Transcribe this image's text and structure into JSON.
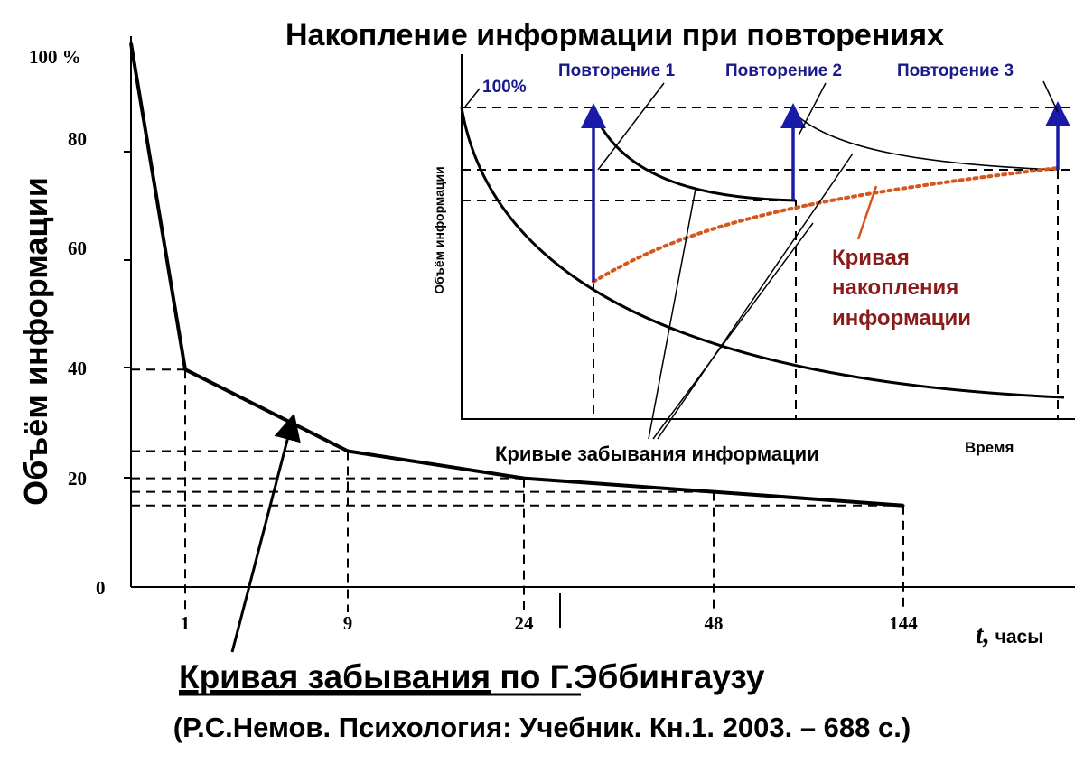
{
  "chart_data": [
    {
      "type": "line",
      "title": "Кривая забывания по Г.Эббингаузу",
      "title_underlined_part": "Кривая забывания",
      "title_rest": " по Г.Эббингаузу",
      "subtitle": "(Р.С.Немов. Психология: Учебник. Кн.1. 2003. – 688 с.)",
      "ylabel": "Объём информации",
      "xlabel_symbol": "t,",
      "xlabel_unit": " часы",
      "x_ticks": [
        "1",
        "9",
        "24",
        "48",
        "144"
      ],
      "y_ticks": [
        {
          "label": "100 %",
          "value": 100
        },
        {
          "label": "80",
          "value": 80
        },
        {
          "label": "60",
          "value": 60
        },
        {
          "label": "40",
          "value": 40
        },
        {
          "label": "20",
          "value": 20
        },
        {
          "label": "0",
          "value": 0
        }
      ],
      "ylim": [
        0,
        100
      ],
      "points": [
        {
          "x": "0",
          "y": 100
        },
        {
          "x": "1",
          "y": 40
        },
        {
          "x": "9",
          "y": 25
        },
        {
          "x": "24",
          "y": 20
        },
        {
          "x": "48",
          "y": 17.5
        },
        {
          "x": "144",
          "y": 15
        }
      ],
      "grid": false
    },
    {
      "type": "line",
      "title": "Накопление информации при повторениях",
      "ylabel": "Объём информации",
      "xlabel": "Время",
      "start_label": "100%",
      "repetitions": [
        "Повторение 1",
        "Повторение 2",
        "Повторение 3"
      ],
      "accumulation_label": [
        "Кривая",
        "накопления",
        "информации"
      ],
      "forgetting_label": "Кривые забывания информации",
      "colors": {
        "curve": "#000000",
        "repetition_arrow": "#1a1aa8",
        "repetition_label": "#1a1a8c",
        "accumulation": "#d4581e",
        "accumulation_label": "#8b1a1a"
      }
    }
  ]
}
